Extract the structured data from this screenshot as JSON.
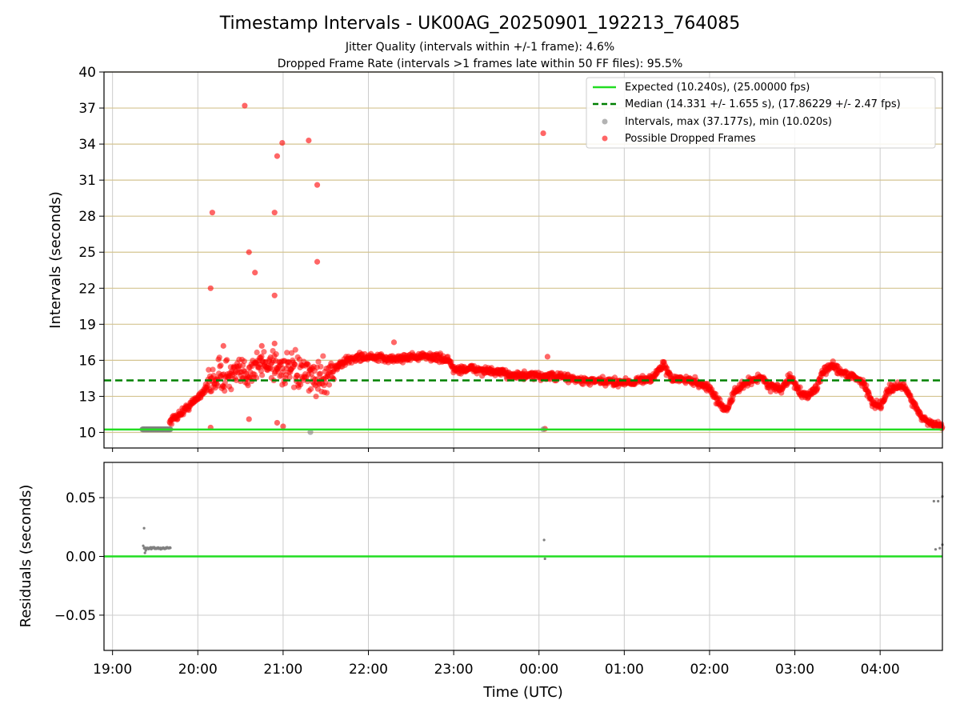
{
  "chart_data": {
    "type": "scatter",
    "title": "Timestamp Intervals - UK00AG_20250901_192213_764085",
    "subtitle_1": "Jitter Quality (intervals within +/-1 frame): 4.6%",
    "subtitle_2": "Dropped Frame Rate (intervals >1 frames late within 50 FF files): 95.5%",
    "xlabel": "Time (UTC)",
    "x_ticks": [
      "19:00",
      "20:00",
      "21:00",
      "22:00",
      "23:00",
      "00:00",
      "01:00",
      "02:00",
      "03:00",
      "04:00"
    ],
    "x_tick_hours": [
      19,
      20,
      21,
      22,
      23,
      24,
      25,
      26,
      27,
      28
    ],
    "xlim_hours": [
      18.9,
      28.73
    ],
    "grid": true,
    "top_panel": {
      "ylabel": "Intervals (seconds)",
      "ylim": [
        8.7,
        40
      ],
      "y_ticks": [
        10,
        13,
        16,
        19,
        22,
        25,
        28,
        31,
        34,
        37,
        40
      ],
      "expected_line": 10.24,
      "median_line": 14.331,
      "legend_position": "top-right",
      "legend": {
        "expected": "Expected (10.240s), (25.00000 fps)",
        "median": "Median (14.331 +/- 1.655 s), (17.86229 +/- 2.47 fps)",
        "intervals": "Intervals, max (37.177s), min (10.020s)",
        "dropped": "Possible Dropped Frames"
      },
      "colors": {
        "expected": "#22dd22",
        "median": "#008000",
        "intervals": "#808080",
        "dropped": "#ff0000",
        "gridline": "#d4c490"
      },
      "dropped_trend": [
        [
          19.67,
          10.9
        ],
        [
          19.8,
          11.6
        ],
        [
          19.93,
          12.4
        ],
        [
          20.05,
          13.3
        ],
        [
          20.15,
          14.2
        ],
        [
          20.25,
          14.8
        ],
        [
          20.4,
          14.7
        ],
        [
          20.55,
          14.9
        ],
        [
          20.7,
          15.6
        ],
        [
          20.85,
          15.8
        ],
        [
          21.0,
          15.3
        ],
        [
          21.15,
          15.0
        ],
        [
          21.3,
          14.6
        ],
        [
          21.45,
          14.5
        ],
        [
          21.6,
          15.3
        ],
        [
          21.75,
          16.0
        ],
        [
          21.9,
          16.3
        ],
        [
          22.1,
          16.2
        ],
        [
          22.3,
          16.1
        ],
        [
          22.5,
          16.3
        ],
        [
          22.75,
          16.3
        ],
        [
          22.95,
          16.0
        ],
        [
          23.0,
          15.2
        ],
        [
          23.2,
          15.3
        ],
        [
          23.5,
          15.0
        ],
        [
          23.8,
          14.7
        ],
        [
          24.0,
          14.7
        ],
        [
          24.3,
          14.6
        ],
        [
          24.5,
          14.3
        ],
        [
          24.8,
          14.2
        ],
        [
          25.1,
          14.2
        ],
        [
          25.35,
          14.6
        ],
        [
          25.45,
          15.7
        ],
        [
          25.55,
          14.5
        ],
        [
          25.8,
          14.3
        ],
        [
          26.0,
          13.7
        ],
        [
          26.1,
          12.5
        ],
        [
          26.2,
          11.9
        ],
        [
          26.3,
          13.4
        ],
        [
          26.45,
          14.2
        ],
        [
          26.6,
          14.6
        ],
        [
          26.7,
          13.9
        ],
        [
          26.85,
          13.6
        ],
        [
          26.95,
          14.6
        ],
        [
          27.05,
          13.4
        ],
        [
          27.15,
          13.0
        ],
        [
          27.25,
          13.7
        ],
        [
          27.35,
          15.2
        ],
        [
          27.45,
          15.6
        ],
        [
          27.55,
          15.0
        ],
        [
          27.7,
          14.6
        ],
        [
          27.8,
          14.2
        ],
        [
          27.9,
          12.5
        ],
        [
          28.0,
          12.2
        ],
        [
          28.1,
          13.6
        ],
        [
          28.2,
          13.8
        ],
        [
          28.3,
          13.7
        ],
        [
          28.4,
          12.3
        ],
        [
          28.5,
          11.2
        ],
        [
          28.6,
          10.7
        ],
        [
          28.73,
          10.5
        ]
      ],
      "dropped_outliers": [
        [
          20.55,
          37.2
        ],
        [
          20.93,
          33.0
        ],
        [
          20.99,
          34.1
        ],
        [
          21.3,
          34.3
        ],
        [
          21.4,
          30.6
        ],
        [
          20.17,
          28.3
        ],
        [
          20.9,
          28.3
        ],
        [
          20.6,
          25.0
        ],
        [
          21.4,
          24.2
        ],
        [
          20.67,
          23.3
        ],
        [
          20.15,
          22.0
        ],
        [
          20.9,
          21.4
        ],
        [
          24.05,
          34.9
        ],
        [
          20.15,
          10.4
        ],
        [
          20.6,
          11.1
        ],
        [
          20.93,
          10.8
        ],
        [
          21.0,
          10.5
        ],
        [
          24.07,
          10.3
        ],
        [
          20.75,
          17.2
        ],
        [
          20.9,
          17.4
        ],
        [
          22.3,
          17.5
        ],
        [
          20.3,
          17.2
        ],
        [
          24.1,
          16.3
        ]
      ],
      "normal_intervals": {
        "cluster_start_hour": 19.35,
        "cluster_end_hour": 19.68,
        "cluster_value": 10.25,
        "singles": [
          [
            21.32,
            10.02
          ],
          [
            24.05,
            10.26
          ]
        ]
      }
    },
    "bottom_panel": {
      "ylabel": "Residuals (seconds)",
      "ylim": [
        -0.08,
        0.08
      ],
      "y_ticks": [
        0.05,
        0.0,
        -0.05
      ],
      "y_tick_labels": [
        "0.05",
        "0.00",
        "−0.05"
      ],
      "zero_line": 0.0,
      "residual_cluster": {
        "start_hour": 19.37,
        "end_hour": 19.68,
        "value": 0.007
      },
      "residual_points": [
        [
          19.37,
          0.024
        ],
        [
          19.38,
          0.003
        ],
        [
          19.36,
          0.009
        ],
        [
          19.39,
          0.005
        ],
        [
          24.06,
          0.014
        ],
        [
          24.07,
          -0.002
        ],
        [
          28.63,
          0.047
        ],
        [
          28.68,
          0.047
        ],
        [
          28.73,
          0.051
        ],
        [
          28.65,
          0.006
        ],
        [
          28.7,
          0.007
        ],
        [
          28.73,
          0.01
        ]
      ]
    }
  }
}
